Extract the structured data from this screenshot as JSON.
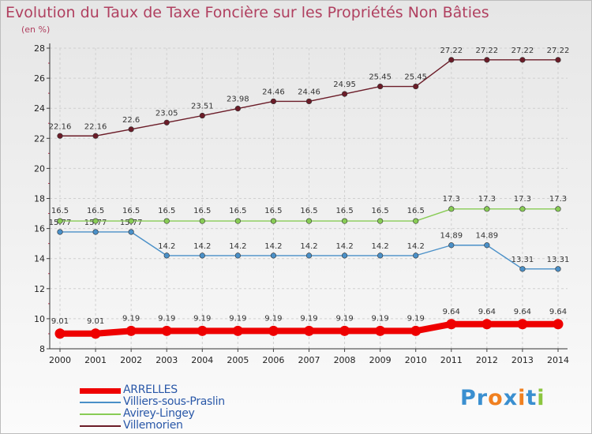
{
  "title": "Evolution du Taux de Taxe Foncière sur les Propriétés Non Bâties",
  "unit": "(en %)",
  "logo": {
    "letters": [
      "P",
      "r",
      "o",
      "x",
      "i",
      "t",
      "i"
    ],
    "colors": [
      "#3a8fd0",
      "#3a8fd0",
      "#f08020",
      "#3a8fd0",
      "#f08020",
      "#3a8fd0",
      "#8cc63f"
    ]
  },
  "chart_data": {
    "type": "line",
    "x": [
      "2000",
      "2001",
      "2002",
      "2003",
      "2004",
      "2005",
      "2006",
      "2007",
      "2008",
      "2009",
      "2010",
      "2011",
      "2012",
      "2013",
      "2014"
    ],
    "ylim": [
      8,
      28
    ],
    "yticks": [
      8,
      10,
      12,
      14,
      16,
      18,
      20,
      22,
      24,
      26,
      28
    ],
    "grid": true,
    "legend_position": "bottom-left",
    "series": [
      {
        "name": "ARRELLES",
        "color": "#ee0000",
        "values": [
          9.01,
          9.01,
          9.19,
          9.19,
          9.19,
          9.19,
          9.19,
          9.19,
          9.19,
          9.19,
          9.19,
          9.64,
          9.64,
          9.64,
          9.64
        ],
        "labels": [
          "9.01",
          "9.01",
          "9.19",
          "9.19",
          "9.19",
          "9.19",
          "9.19",
          "9.19",
          "9.19",
          "9.19",
          "9.19",
          "9.64",
          "9.64",
          "9.64",
          "9.64"
        ]
      },
      {
        "name": "Villiers-sous-Praslin",
        "color": "#4a90c8",
        "values": [
          15.77,
          15.77,
          15.77,
          14.2,
          14.2,
          14.2,
          14.2,
          14.2,
          14.2,
          14.2,
          14.2,
          14.89,
          14.89,
          13.31,
          13.31
        ],
        "labels": [
          "15.77",
          "15.77",
          "15.77",
          "14.2",
          "14.2",
          "14.2",
          "14.2",
          "14.2",
          "14.2",
          "14.2",
          "14.2",
          "14.89",
          "14.89",
          "13.31",
          "13.31"
        ]
      },
      {
        "name": "Avirey-Lingey",
        "color": "#88cc55",
        "values": [
          16.5,
          16.5,
          16.5,
          16.5,
          16.5,
          16.5,
          16.5,
          16.5,
          16.5,
          16.5,
          16.5,
          17.3,
          17.3,
          17.3,
          17.3
        ],
        "labels": [
          "16.5",
          "16.5",
          "16.5",
          "16.5",
          "16.5",
          "16.5",
          "16.5",
          "16.5",
          "16.5",
          "16.5",
          "16.5",
          "17.3",
          "17.3",
          "17.3",
          "17.3"
        ]
      },
      {
        "name": "Villemorien",
        "color": "#6b1c28",
        "values": [
          22.16,
          22.16,
          22.6,
          23.05,
          23.51,
          23.98,
          24.46,
          24.46,
          24.95,
          25.45,
          25.45,
          27.22,
          27.22,
          27.22,
          27.22
        ],
        "labels": [
          "22.16",
          "22.16",
          "22.6",
          "23.05",
          "23.51",
          "23.98",
          "24.46",
          "24.46",
          "24.95",
          "25.45",
          "25.45",
          "27.22",
          "27.22",
          "27.22",
          "27.22"
        ]
      }
    ]
  }
}
